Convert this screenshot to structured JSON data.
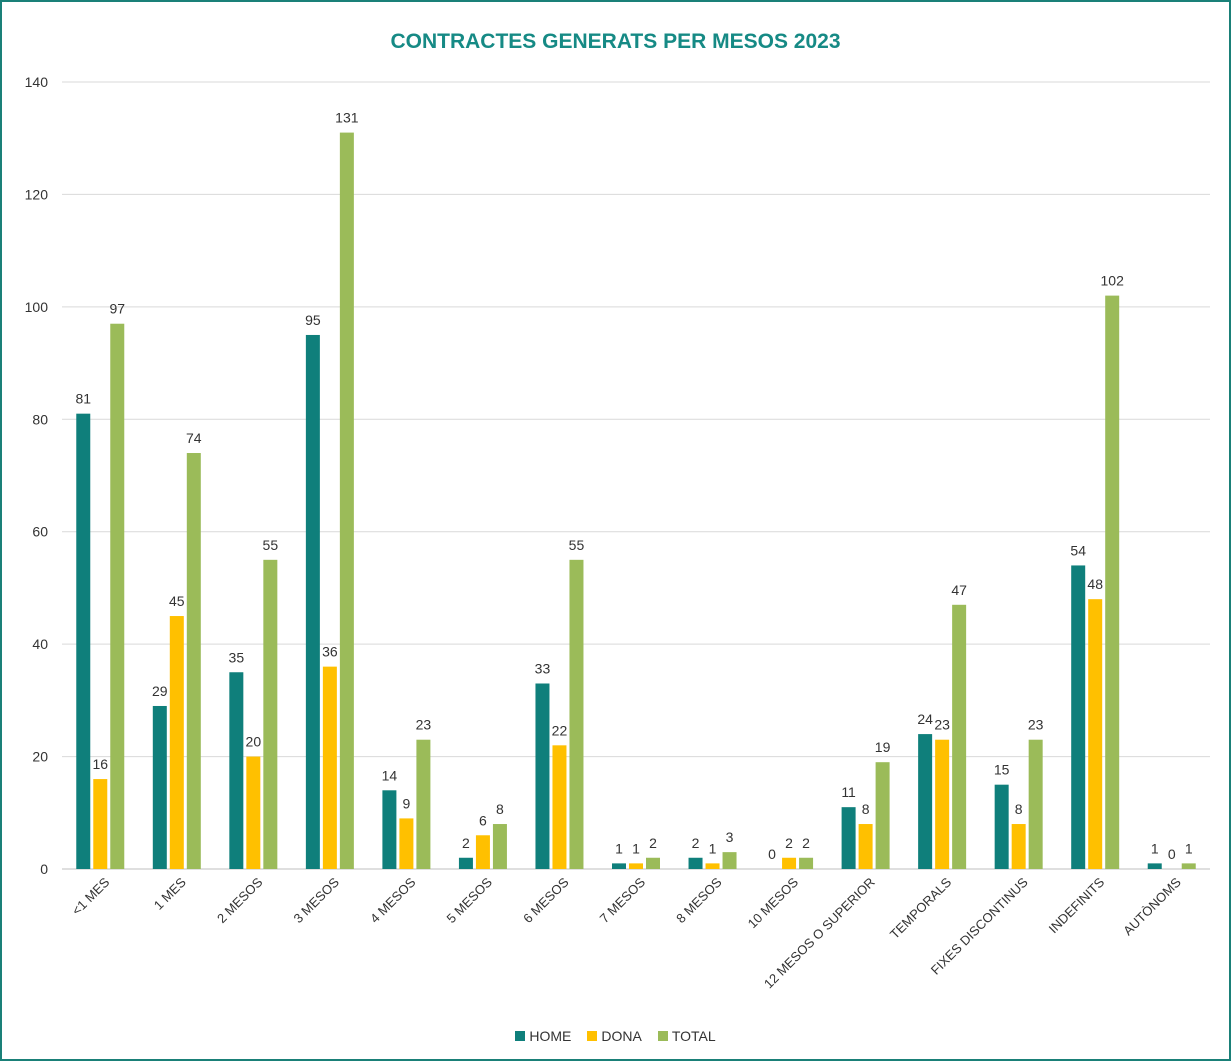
{
  "chart_data": {
    "type": "bar",
    "title": "CONTRACTES GENERATS PER MESOS 2023",
    "categories": [
      "<1 MES",
      "1 MES",
      "2 MESOS",
      "3 MESOS",
      "4 MESOS",
      "5 MESOS",
      "6 MESOS",
      "7 MESOS",
      "8 MESOS",
      "10 MESOS",
      "12 MESOS O SUPERIOR",
      "TEMPORALS",
      "FIXES DISCONTINUS",
      "INDEFINITS",
      "AUTÒNOMS"
    ],
    "series": [
      {
        "name": "HOME",
        "color": "#0f7f7b",
        "values": [
          81,
          29,
          35,
          95,
          14,
          2,
          33,
          1,
          2,
          0,
          11,
          24,
          15,
          54,
          1
        ]
      },
      {
        "name": "DONA",
        "color": "#ffc000",
        "values": [
          16,
          45,
          20,
          36,
          9,
          6,
          22,
          1,
          1,
          2,
          8,
          23,
          8,
          48,
          0
        ]
      },
      {
        "name": "TOTAL",
        "color": "#9bbb59",
        "values": [
          97,
          74,
          55,
          131,
          23,
          8,
          55,
          2,
          3,
          2,
          19,
          47,
          23,
          102,
          1
        ]
      }
    ],
    "y_ticks": [
      0,
      20,
      40,
      60,
      80,
      100,
      120,
      140
    ],
    "ylim": [
      0,
      140
    ],
    "xlabel": "",
    "ylabel": "",
    "grid": true,
    "legend_position": "bottom"
  }
}
